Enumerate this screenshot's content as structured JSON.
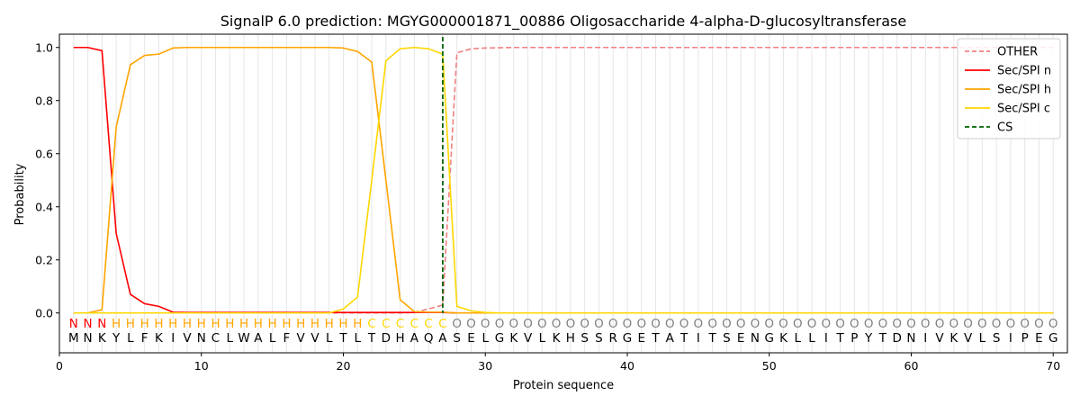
{
  "chart_data": {
    "type": "line",
    "title": "SignalP 6.0 prediction: MGYG000001871_00886 Oligosaccharide 4-alpha-D-glucosyltransferase",
    "xlabel": "Protein sequence",
    "ylabel": "Probability",
    "xlim": [
      0,
      71
    ],
    "ylim": [
      -0.15,
      1.05
    ],
    "xticks": [
      0,
      10,
      20,
      30,
      40,
      50,
      60,
      70
    ],
    "yticks": [
      0.0,
      0.2,
      0.4,
      0.6,
      0.8,
      1.0
    ],
    "grid": "vertical lines at each residue",
    "legend_position": "top-right",
    "sequence": [
      "M",
      "N",
      "K",
      "Y",
      "L",
      "F",
      "K",
      "I",
      "V",
      "N",
      "C",
      "L",
      "W",
      "A",
      "L",
      "F",
      "V",
      "V",
      "L",
      "T",
      "L",
      "T",
      "D",
      "H",
      "A",
      "Q",
      "A",
      "S",
      "E",
      "L",
      "G",
      "K",
      "V",
      "L",
      "K",
      "H",
      "S",
      "S",
      "R",
      "G",
      "E",
      "T",
      "A",
      "T",
      "I",
      "T",
      "S",
      "E",
      "N",
      "G",
      "K",
      "L",
      "L",
      "I",
      "T",
      "P",
      "Y",
      "T",
      "D",
      "N",
      "I",
      "V",
      "K",
      "V",
      "L",
      "S",
      "I",
      "P",
      "E",
      "G"
    ],
    "regions": [
      "N",
      "N",
      "N",
      "H",
      "H",
      "H",
      "H",
      "H",
      "H",
      "H",
      "H",
      "H",
      "H",
      "H",
      "H",
      "H",
      "H",
      "H",
      "H",
      "H",
      "H",
      "C",
      "C",
      "C",
      "C",
      "C",
      "C",
      "O",
      "O",
      "O",
      "O",
      "O",
      "O",
      "O",
      "O",
      "O",
      "O",
      "O",
      "O",
      "O",
      "O",
      "O",
      "O",
      "O",
      "O",
      "O",
      "O",
      "O",
      "O",
      "O",
      "O",
      "O",
      "O",
      "O",
      "O",
      "O",
      "O",
      "O",
      "O",
      "O",
      "O",
      "O",
      "O",
      "O",
      "O",
      "O",
      "O",
      "O",
      "O",
      "O"
    ],
    "region_colors": {
      "N": "#ff0000",
      "H": "#ffa500",
      "C": "#ffd700",
      "O": "#808080"
    },
    "series": [
      {
        "name": "OTHER",
        "color": "#f08080",
        "dash": true,
        "values": [
          0,
          0,
          0,
          0,
          0,
          0,
          0,
          0,
          0,
          0,
          0,
          0,
          0,
          0,
          0,
          0,
          0,
          0,
          0,
          0,
          0,
          0,
          0,
          0,
          0.002,
          0.015,
          0.03,
          0.98,
          0.995,
          0.998,
          0.999,
          1,
          1,
          1,
          1,
          1,
          1,
          1,
          1,
          1,
          1,
          1,
          1,
          1,
          1,
          1,
          1,
          1,
          1,
          1,
          1,
          1,
          1,
          1,
          1,
          1,
          1,
          1,
          1,
          1,
          1,
          1,
          1,
          1,
          1,
          1,
          1,
          1,
          1,
          1
        ]
      },
      {
        "name": "Sec/SPI n",
        "color": "#ff0000",
        "dash": false,
        "values": [
          1,
          1,
          0.988,
          0.3,
          0.07,
          0.035,
          0.025,
          0.003,
          0.002,
          0.002,
          0.002,
          0.002,
          0.002,
          0.002,
          0.002,
          0.002,
          0.002,
          0.002,
          0.002,
          0.002,
          0.002,
          0.002,
          0.002,
          0.002,
          0.002,
          0.002,
          0.002,
          0,
          0,
          0,
          0,
          0,
          0,
          0,
          0,
          0,
          0,
          0,
          0,
          0,
          0,
          0,
          0,
          0,
          0,
          0,
          0,
          0,
          0,
          0,
          0,
          0,
          0,
          0,
          0,
          0,
          0,
          0,
          0,
          0,
          0,
          0,
          0,
          0,
          0,
          0,
          0,
          0,
          0,
          0
        ]
      },
      {
        "name": "Sec/SPI h",
        "color": "#ffa500",
        "dash": false,
        "values": [
          0,
          0,
          0.012,
          0.7,
          0.935,
          0.97,
          0.975,
          0.998,
          1,
          1,
          1,
          1,
          1,
          1,
          1,
          1,
          1,
          1,
          1,
          0.998,
          0.985,
          0.945,
          0.5,
          0.05,
          0.005,
          0.003,
          0.003,
          0,
          0,
          0,
          0,
          0,
          0,
          0,
          0,
          0,
          0,
          0,
          0,
          0,
          0,
          0,
          0,
          0,
          0,
          0,
          0,
          0,
          0,
          0,
          0,
          0,
          0,
          0,
          0,
          0,
          0,
          0,
          0,
          0,
          0,
          0,
          0,
          0,
          0,
          0,
          0,
          0,
          0,
          0
        ]
      },
      {
        "name": "Sec/SPI c",
        "color": "#ffd700",
        "dash": false,
        "values": [
          0,
          0,
          0,
          0,
          0,
          0,
          0,
          0,
          0,
          0,
          0,
          0,
          0,
          0,
          0,
          0,
          0,
          0,
          0,
          0.015,
          0.06,
          0.5,
          0.95,
          0.995,
          1,
          0.995,
          0.975,
          0.025,
          0.008,
          0.002,
          0,
          0,
          0,
          0,
          0,
          0,
          0,
          0,
          0,
          0,
          0,
          0,
          0,
          0,
          0,
          0,
          0,
          0,
          0,
          0,
          0,
          0,
          0,
          0,
          0,
          0,
          0,
          0,
          0,
          0,
          0,
          0,
          0,
          0,
          0,
          0,
          0,
          0,
          0,
          0
        ]
      }
    ],
    "cs": {
      "name": "CS",
      "x": 27,
      "color": "#006400"
    }
  }
}
